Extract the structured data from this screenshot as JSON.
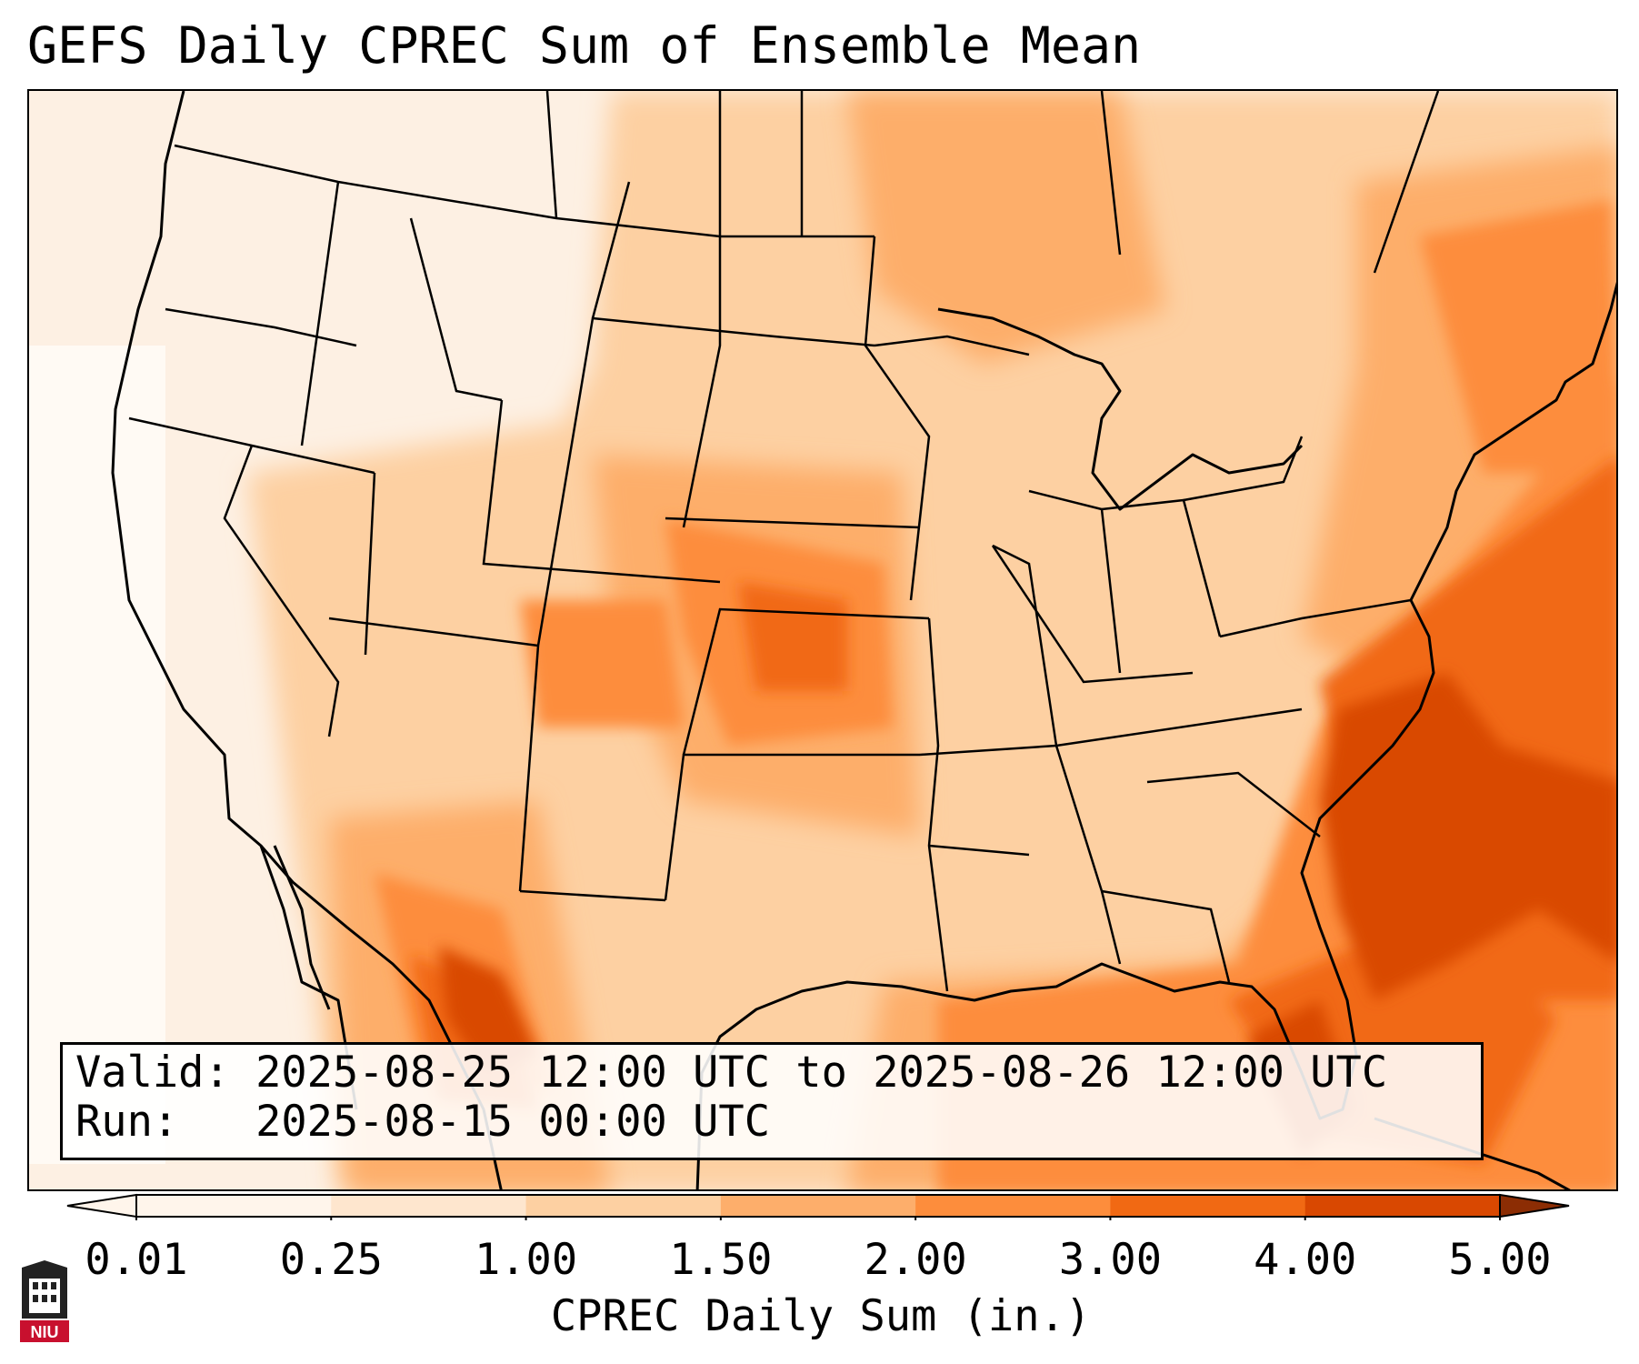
{
  "title": "GEFS Daily CPREC Sum of Ensemble Mean",
  "info": {
    "valid_label": "Valid:",
    "valid_value": "2025-08-25 12:00 UTC to 2025-08-26 12:00 UTC",
    "run_label": "Run:",
    "run_value": "2025-08-15 00:00 UTC"
  },
  "colorbar": {
    "label": "CPREC Daily Sum (in.)",
    "ticks": [
      "0.01",
      "0.25",
      "1.00",
      "1.50",
      "2.00",
      "3.00",
      "4.00",
      "5.00"
    ],
    "colors": [
      "#fff5eb",
      "#fee6ce",
      "#fdd0a2",
      "#fdae6b",
      "#fd8d3c",
      "#f16913",
      "#d94801",
      "#8c2d04"
    ],
    "extend": "both"
  },
  "logo": {
    "text": "NIU",
    "colors": {
      "red": "#c8102e",
      "dark": "#222222"
    }
  },
  "map": {
    "region": "Contiguous United States",
    "heavy_areas": [
      "Southeast US coast / western Atlantic",
      "Gulf of Mexico",
      "Sierra Madre Occidental, Mexico",
      "Central Plains (Kansas, Nebraska, Oklahoma)"
    ]
  }
}
